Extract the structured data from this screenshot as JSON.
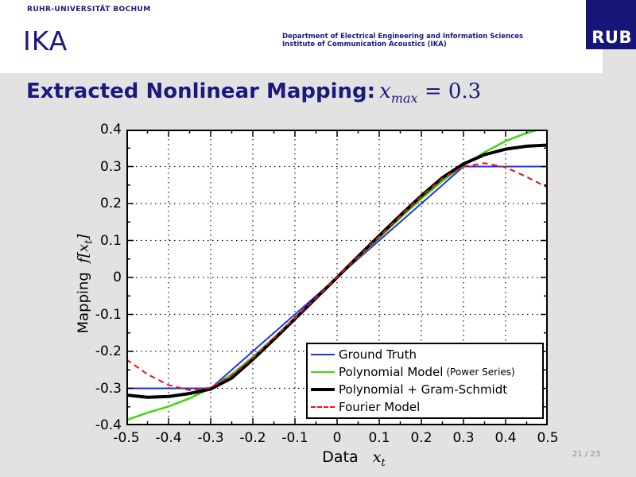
{
  "header": {
    "university": "RUHR-UNIVERSITÄT BOCHUM",
    "institute_short": "IKA",
    "department_line1": "Department of Electrical Engineering and Information Sciences",
    "department_line2": "Institute of Communication Acoustics (IKA)",
    "logo_text": "RUB"
  },
  "title": {
    "text": "Extracted Nonlinear Mapping:",
    "math_var": "x",
    "math_sub": "max",
    "math_eq": " = 0.3"
  },
  "footer": {
    "page_number": "21 / 23"
  },
  "colors": {
    "navy_text": "#181880",
    "logo_bg": "#161677",
    "slide_bg_gray": "#e2e2e2",
    "plot_bg": "#ffffff",
    "ground_truth_blue": "#2230ee",
    "polynomial_green": "#3fd60e",
    "gram_schmidt_black": "#000000",
    "fourier_red": "#ee1010"
  },
  "chart_data": {
    "type": "line",
    "xlabel_text": "Data",
    "xlabel_math": "x",
    "xlabel_sub": "t",
    "ylabel_text": "Mapping",
    "ylabel_math": "f[x",
    "ylabel_sub": "t",
    "ylabel_close": "]",
    "xlim": [
      -0.5,
      0.5
    ],
    "ylim": [
      -0.4,
      0.4
    ],
    "x_ticks": [
      -0.5,
      -0.4,
      -0.3,
      -0.2,
      -0.1,
      0,
      0.1,
      0.2,
      0.3,
      0.4,
      0.5
    ],
    "x_tick_labels": [
      "-0.5",
      "-0.4",
      "-0.3",
      "-0.2",
      "-0.1",
      "0",
      "0.1",
      "0.2",
      "0.3",
      "0.4",
      "0.5"
    ],
    "y_ticks": [
      -0.4,
      -0.3,
      -0.2,
      -0.1,
      0,
      0.1,
      0.2,
      0.3,
      0.4
    ],
    "y_tick_labels": [
      "-0.4",
      "-0.3",
      "-0.2",
      "-0.1",
      "0",
      "0.1",
      "0.2",
      "0.3",
      "0.4"
    ],
    "minor_tick_step": 0.05,
    "grid": true,
    "grid_style": "dotted",
    "legend_position": "lower-right-inside",
    "series": [
      {
        "name": "Ground Truth",
        "color": "#2230ee",
        "style": "solid",
        "width": 2,
        "points": [
          [
            -0.5,
            -0.3
          ],
          [
            -0.3,
            -0.3
          ],
          [
            0.3,
            0.3
          ],
          [
            0.5,
            0.3
          ]
        ]
      },
      {
        "name": "Polynomial Model",
        "name_suffix": "(Power Series)",
        "color": "#3fd60e",
        "style": "solid",
        "width": 2.5,
        "points": [
          [
            -0.5,
            -0.386
          ],
          [
            -0.45,
            -0.366
          ],
          [
            -0.4,
            -0.349
          ],
          [
            -0.35,
            -0.327
          ],
          [
            -0.3,
            -0.3
          ],
          [
            -0.25,
            -0.262
          ],
          [
            -0.2,
            -0.215
          ],
          [
            -0.15,
            -0.163
          ],
          [
            -0.1,
            -0.109
          ],
          [
            -0.05,
            -0.054
          ],
          [
            0,
            -0.001
          ],
          [
            0.05,
            0.053
          ],
          [
            0.1,
            0.107
          ],
          [
            0.15,
            0.161
          ],
          [
            0.2,
            0.213
          ],
          [
            0.25,
            0.261
          ],
          [
            0.3,
            0.303
          ],
          [
            0.35,
            0.339
          ],
          [
            0.4,
            0.369
          ],
          [
            0.45,
            0.391
          ],
          [
            0.5,
            0.406
          ]
        ]
      },
      {
        "name": "Polynomial + Gram-Schmidt",
        "color": "#000000",
        "style": "solid",
        "width": 4,
        "points": [
          [
            -0.5,
            -0.318
          ],
          [
            -0.45,
            -0.324
          ],
          [
            -0.4,
            -0.322
          ],
          [
            -0.35,
            -0.314
          ],
          [
            -0.3,
            -0.302
          ],
          [
            -0.25,
            -0.272
          ],
          [
            -0.2,
            -0.222
          ],
          [
            -0.15,
            -0.168
          ],
          [
            -0.1,
            -0.112
          ],
          [
            -0.05,
            -0.056
          ],
          [
            0,
            0
          ],
          [
            0.05,
            0.057
          ],
          [
            0.1,
            0.113
          ],
          [
            0.15,
            0.168
          ],
          [
            0.2,
            0.221
          ],
          [
            0.25,
            0.27
          ],
          [
            0.3,
            0.307
          ],
          [
            0.35,
            0.332
          ],
          [
            0.4,
            0.347
          ],
          [
            0.45,
            0.355
          ],
          [
            0.5,
            0.358
          ]
        ]
      },
      {
        "name": "Fourier Model",
        "color": "#ee1010",
        "style": "dashed",
        "width": 2,
        "points": [
          [
            -0.5,
            -0.222
          ],
          [
            -0.45,
            -0.262
          ],
          [
            -0.4,
            -0.291
          ],
          [
            -0.35,
            -0.305
          ],
          [
            -0.3,
            -0.298
          ],
          [
            -0.25,
            -0.265
          ],
          [
            -0.2,
            -0.218
          ],
          [
            -0.15,
            -0.164
          ],
          [
            -0.1,
            -0.11
          ],
          [
            -0.05,
            -0.055
          ],
          [
            0,
            0.001
          ],
          [
            0.05,
            0.056
          ],
          [
            0.1,
            0.111
          ],
          [
            0.15,
            0.166
          ],
          [
            0.2,
            0.22
          ],
          [
            0.25,
            0.268
          ],
          [
            0.3,
            0.3
          ],
          [
            0.35,
            0.309
          ],
          [
            0.4,
            0.298
          ],
          [
            0.45,
            0.272
          ],
          [
            0.5,
            0.243
          ]
        ]
      }
    ]
  }
}
